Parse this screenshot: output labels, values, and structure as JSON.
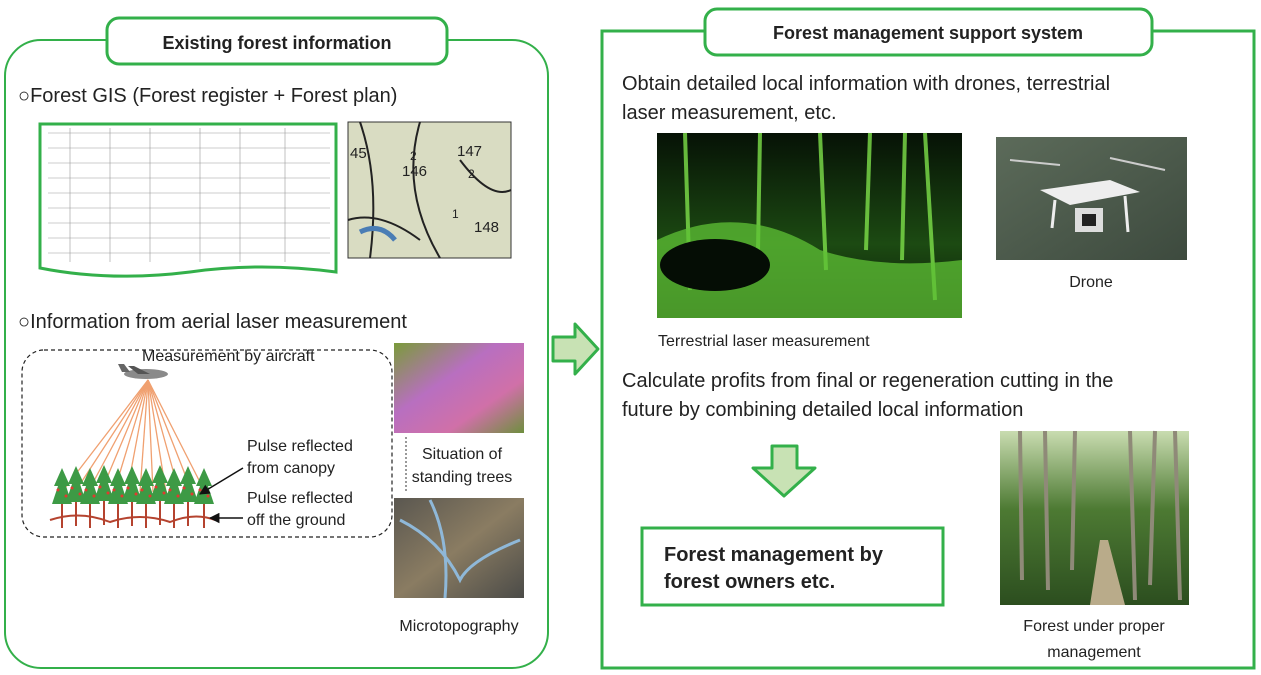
{
  "left_panel": {
    "title": "Existing forest information",
    "gis": {
      "heading": "○Forest GIS (Forest register + Forest plan)",
      "map_labels": [
        "45",
        "146",
        "147",
        "148",
        "2",
        "2",
        "1"
      ]
    },
    "aerial": {
      "heading": "○Information from aerial laser measurement",
      "aircraft_label": "Measurement by aircraft",
      "canopy_label": [
        "Pulse reflected",
        "from canopy"
      ],
      "ground_label": [
        "Pulse reflected",
        "off the ground"
      ],
      "trees_caption": [
        "Situation of",
        "standing trees"
      ],
      "topo_caption": "Microtopography"
    }
  },
  "right_panel": {
    "title": "Forest management support system",
    "obtain_text": [
      "Obtain detailed local information with drones, terrestrial",
      "laser measurement, etc."
    ],
    "lidar_caption": "Terrestrial laser measurement",
    "drone_caption": "Drone",
    "calculate_text": [
      "Calculate profits from final or regeneration cutting in the",
      "future by combining detailed local information"
    ],
    "result_box": [
      "Forest management by",
      "forest owners etc."
    ],
    "forest_caption": [
      "Forest under proper",
      "management"
    ]
  }
}
